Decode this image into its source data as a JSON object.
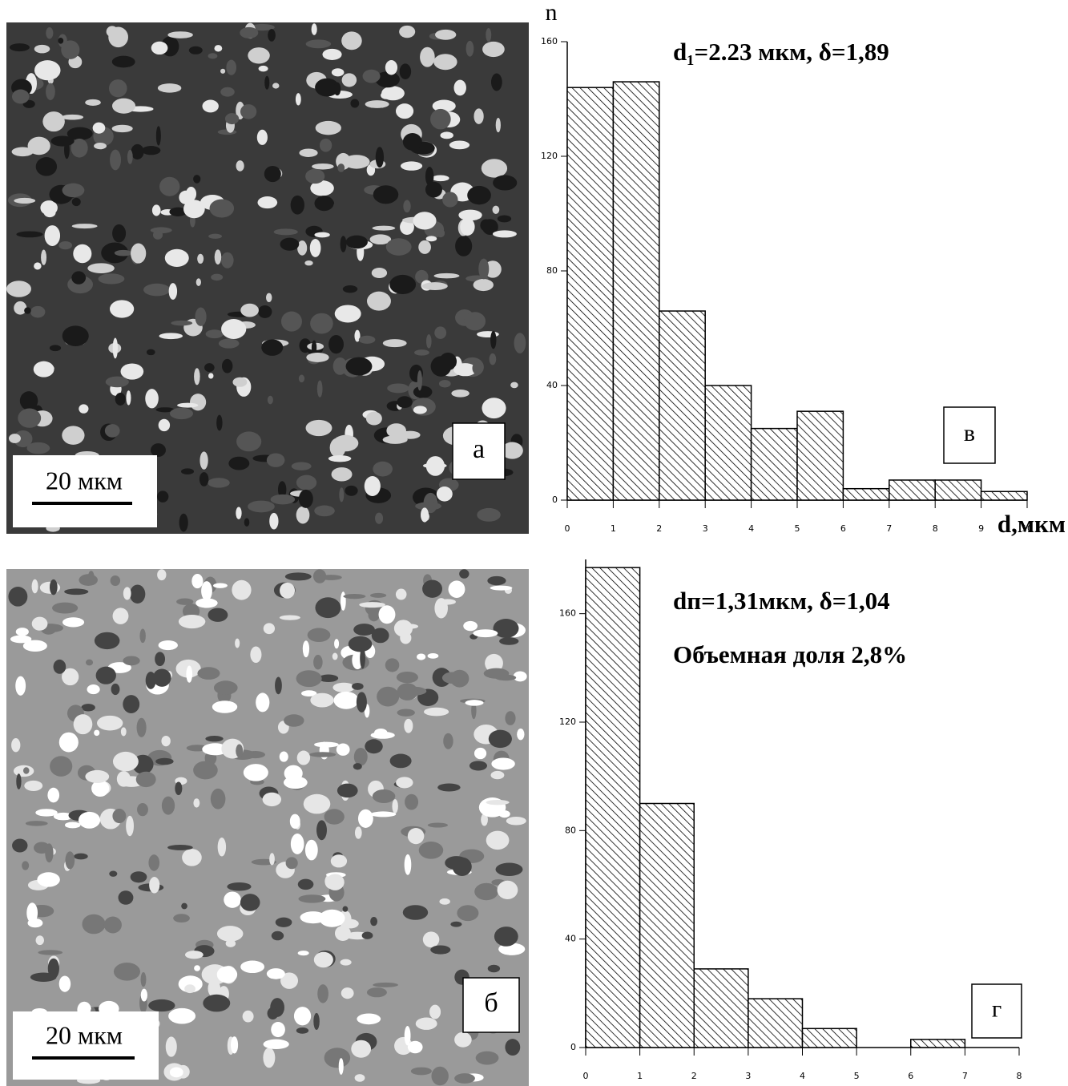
{
  "images": [
    {
      "label": "а",
      "scale_bar": "20 мкм"
    },
    {
      "label": "б",
      "scale_bar": "20 мкм"
    }
  ],
  "chart_data": [
    {
      "type": "histogram",
      "panel": "в",
      "annotations": [
        "d₁=2.23 мкм, δ=1,89"
      ],
      "y_label": "n",
      "x_label": "d,мкм",
      "bins": [
        0,
        1,
        2,
        3,
        4,
        5,
        6,
        7,
        8,
        9,
        10
      ],
      "values": [
        144,
        146,
        66,
        40,
        25,
        31,
        4,
        7,
        7,
        3
      ],
      "color": "#000000",
      "xlim": [
        0,
        10
      ],
      "ylim": [
        0,
        160
      ],
      "xticks": [
        0,
        1,
        2,
        3,
        4,
        5,
        6,
        7,
        8,
        9,
        10
      ],
      "yticks": [
        0,
        40,
        80,
        120,
        160
      ]
    },
    {
      "type": "histogram",
      "panel": "г",
      "annotations": [
        "dп=1,31мкм, δ=1,04",
        "Объемная доля 2,8%"
      ],
      "bins": [
        0,
        1,
        2,
        3,
        4,
        5,
        6,
        7,
        8
      ],
      "values": [
        177,
        90,
        29,
        18,
        7,
        0,
        3,
        0
      ],
      "color": "#000000",
      "xlim": [
        0,
        8
      ],
      "ylim": [
        0,
        180
      ],
      "xticks": [
        0,
        1,
        2,
        3,
        4,
        5,
        6,
        7,
        8
      ],
      "yticks": [
        0,
        40,
        80,
        120,
        160
      ]
    }
  ]
}
